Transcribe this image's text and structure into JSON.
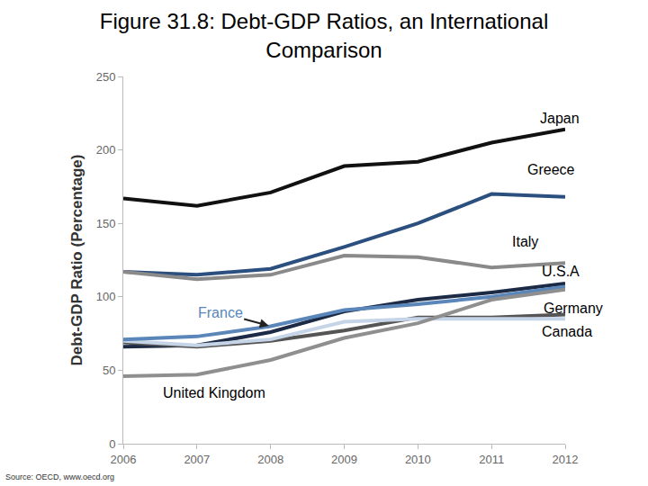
{
  "chart_data": {
    "type": "line",
    "title": "Figure 31.8: Debt-GDP Ratios, an International Comparison",
    "y_label": "Debt-GDP Ratio (Percentage)",
    "source": "Source: OECD, www.oecd.org",
    "x": [
      2006,
      2007,
      2008,
      2009,
      2010,
      2011,
      2012
    ],
    "xlim": [
      2006,
      2012
    ],
    "xticks": [
      2006,
      2007,
      2008,
      2009,
      2010,
      2011,
      2012
    ],
    "ylim": [
      0,
      250
    ],
    "yticks": [
      0,
      50,
      100,
      150,
      200,
      250
    ],
    "grid": false,
    "series": [
      {
        "name": "Japan",
        "color": "#111111",
        "values": [
          167,
          162,
          171,
          189,
          192,
          205,
          214
        ]
      },
      {
        "name": "Greece",
        "color": "#2b4f7e",
        "values": [
          117,
          115,
          119,
          134,
          150,
          170,
          168
        ]
      },
      {
        "name": "Italy",
        "color": "#8a8a8a",
        "values": [
          117,
          112,
          115,
          128,
          127,
          120,
          123
        ]
      },
      {
        "name": "U.S.A",
        "color": "#1c2a45",
        "values": [
          66,
          67,
          76,
          90,
          98,
          103,
          109
        ]
      },
      {
        "name": "Germany",
        "color": "#555555",
        "values": [
          69,
          66,
          70,
          77,
          86,
          86,
          88
        ]
      },
      {
        "name": "Canada",
        "color": "#c6d4e8",
        "values": [
          70,
          67,
          71,
          83,
          85,
          85,
          85
        ]
      },
      {
        "name": "France",
        "color": "#5a86ba",
        "values": [
          71,
          73,
          80,
          91,
          95,
          100,
          107
        ]
      },
      {
        "name": "United Kingdom",
        "color": "#8f8f8f",
        "values": [
          46,
          47,
          57,
          72,
          82,
          98,
          105
        ]
      }
    ]
  }
}
